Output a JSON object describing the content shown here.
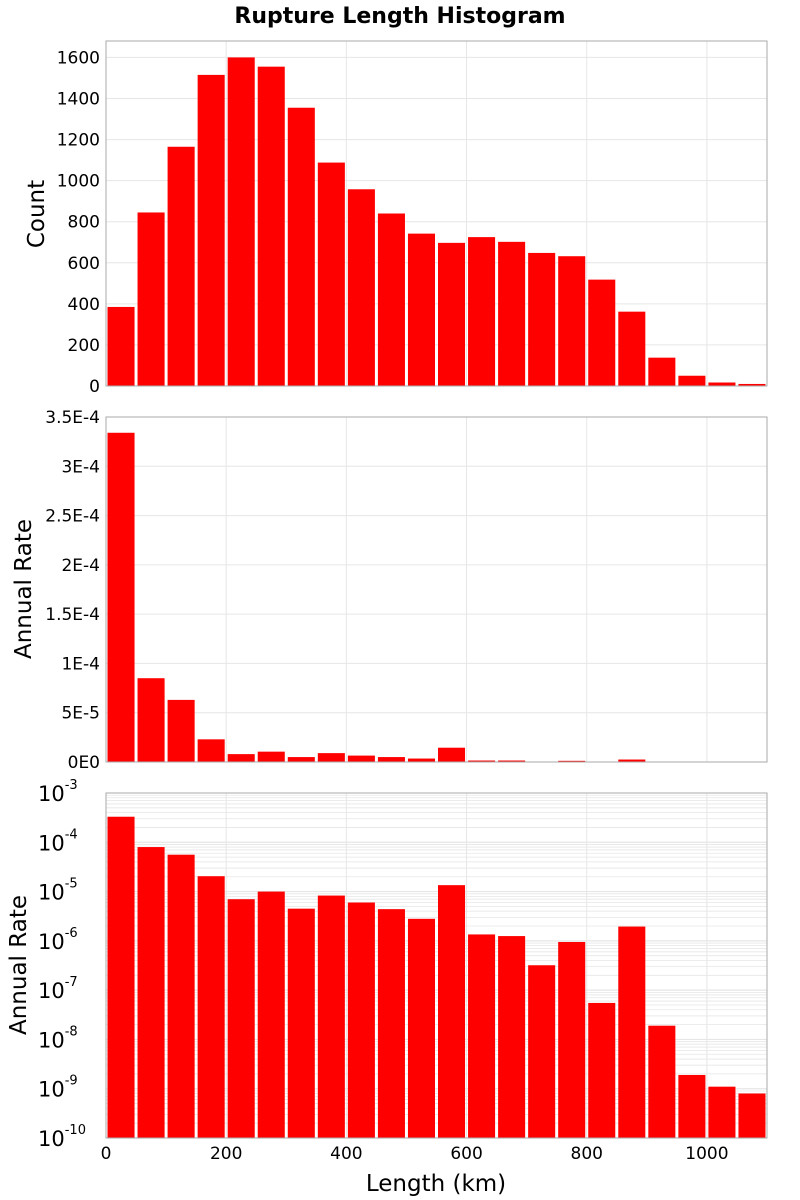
{
  "title": "Rupture Length Histogram",
  "xlabel": "Length (km)",
  "colors": {
    "bar": "#ff0000",
    "grid": "#e6e6e6",
    "frame": "#aaaaaa",
    "background": "#ffffff"
  },
  "chart_data": [
    {
      "type": "bar",
      "panel": "top",
      "ylabel": "Count",
      "yscale": "linear",
      "bin_width": 50,
      "x": [
        25,
        75,
        125,
        175,
        225,
        275,
        325,
        375,
        425,
        475,
        525,
        575,
        625,
        675,
        725,
        775,
        825,
        875,
        925,
        975,
        1025,
        1075
      ],
      "values": [
        385,
        845,
        1165,
        1515,
        1600,
        1555,
        1355,
        1088,
        958,
        840,
        742,
        697,
        725,
        702,
        648,
        632,
        518,
        362,
        138,
        50,
        17,
        10
      ],
      "xlim": [
        0,
        1100
      ],
      "ylim": [
        0,
        1680
      ],
      "yticks": [
        0,
        200,
        400,
        600,
        800,
        1000,
        1200,
        1400,
        1600
      ],
      "ytick_labels": [
        "0",
        "200",
        "400",
        "600",
        "800",
        "1000",
        "1200",
        "1400",
        "1600"
      ],
      "xticks": [
        0,
        200,
        400,
        600,
        800,
        1000
      ]
    },
    {
      "type": "bar",
      "panel": "middle",
      "ylabel": "Annual Rate",
      "yscale": "linear",
      "bin_width": 50,
      "x": [
        25,
        75,
        125,
        175,
        225,
        275,
        325,
        375,
        425,
        475,
        525,
        575,
        625,
        675,
        725,
        775,
        825,
        875,
        925,
        975,
        1025,
        1075
      ],
      "values": [
        0.000334,
        8.5e-05,
        6.3e-05,
        2.3e-05,
        8e-06,
        1.05e-05,
        5e-06,
        9e-06,
        6.5e-06,
        5e-06,
        3.5e-06,
        1.45e-05,
        1.5e-06,
        1.5e-06,
        5e-07,
        1.2e-06,
        1e-07,
        2.5e-06,
        0,
        0,
        0,
        0
      ],
      "xlim": [
        0,
        1100
      ],
      "ylim": [
        0,
        0.00035
      ],
      "yticks": [
        0,
        5e-05,
        0.0001,
        0.00015,
        0.0002,
        0.00025,
        0.0003,
        0.00035
      ],
      "ytick_labels": [
        "0E0",
        "5E-5",
        "1E-4",
        "1.5E-4",
        "2E-4",
        "2.5E-4",
        "3E-4",
        "3.5E-4"
      ],
      "xticks": [
        0,
        200,
        400,
        600,
        800,
        1000
      ]
    },
    {
      "type": "bar",
      "panel": "bottom",
      "ylabel": "Annual Rate",
      "yscale": "log",
      "bin_width": 50,
      "x": [
        25,
        75,
        125,
        175,
        225,
        275,
        325,
        375,
        425,
        475,
        525,
        575,
        625,
        675,
        725,
        775,
        825,
        875,
        925,
        975,
        1025,
        1075
      ],
      "values": [
        0.00033,
        8e-05,
        5.6e-05,
        2.05e-05,
        7e-06,
        1e-05,
        4.5e-06,
        8.3e-06,
        6e-06,
        4.4e-06,
        2.8e-06,
        1.35e-05,
        1.35e-06,
        1.25e-06,
        3.2e-07,
        9.5e-07,
        5.5e-08,
        1.95e-06,
        1.9e-08,
        1.9e-09,
        1.1e-09,
        8e-10
      ],
      "xlim": [
        0,
        1100
      ],
      "ylim_exponents": [
        -10,
        -3
      ],
      "ytick_bases": [
        "10",
        "10",
        "10",
        "10",
        "10",
        "10",
        "10",
        "10"
      ],
      "ytick_exponents": [
        "-10",
        "-9",
        "-8",
        "-7",
        "-6",
        "-5",
        "-4",
        "-3"
      ],
      "xticks": [
        0,
        200,
        400,
        600,
        800,
        1000
      ],
      "xtick_labels": [
        "0",
        "200",
        "400",
        "600",
        "800",
        "1000"
      ]
    }
  ]
}
